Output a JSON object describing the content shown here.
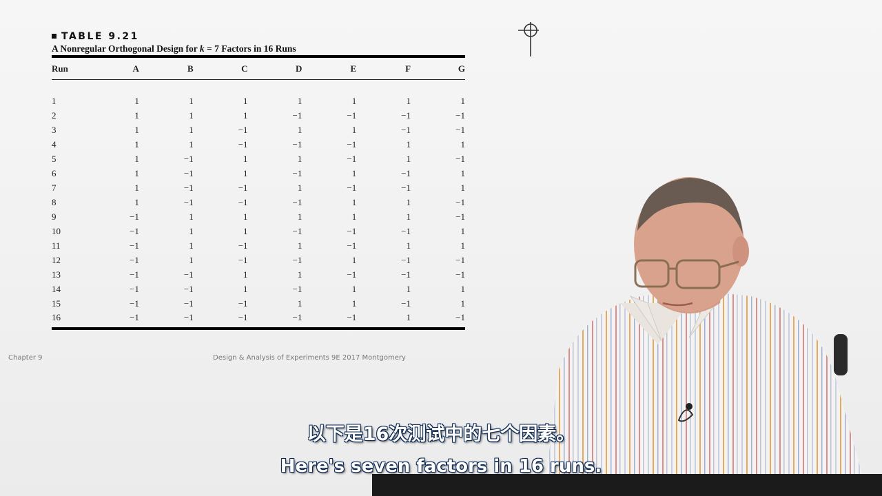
{
  "table": {
    "label": "TABLE 9.21",
    "caption_pre": "A Nonregular Orthogonal Design for ",
    "caption_k": "k",
    "caption_post": " = 7 Factors in 16 Runs",
    "headers": [
      "Run",
      "A",
      "B",
      "C",
      "D",
      "E",
      "F",
      "G"
    ],
    "rows": [
      [
        "1",
        "1",
        "1",
        "1",
        "1",
        "1",
        "1",
        "1"
      ],
      [
        "2",
        "1",
        "1",
        "1",
        "−1",
        "−1",
        "−1",
        "−1"
      ],
      [
        "3",
        "1",
        "1",
        "−1",
        "1",
        "1",
        "−1",
        "−1"
      ],
      [
        "4",
        "1",
        "1",
        "−1",
        "−1",
        "−1",
        "1",
        "1"
      ],
      [
        "5",
        "1",
        "−1",
        "1",
        "1",
        "−1",
        "1",
        "−1"
      ],
      [
        "6",
        "1",
        "−1",
        "1",
        "−1",
        "1",
        "−1",
        "1"
      ],
      [
        "7",
        "1",
        "−1",
        "−1",
        "1",
        "−1",
        "−1",
        "1"
      ],
      [
        "8",
        "1",
        "−1",
        "−1",
        "−1",
        "1",
        "1",
        "−1"
      ],
      [
        "9",
        "−1",
        "1",
        "1",
        "1",
        "1",
        "1",
        "−1"
      ],
      [
        "10",
        "−1",
        "1",
        "1",
        "−1",
        "−1",
        "−1",
        "1"
      ],
      [
        "11",
        "−1",
        "1",
        "−1",
        "1",
        "−1",
        "1",
        "1"
      ],
      [
        "12",
        "−1",
        "1",
        "−1",
        "−1",
        "1",
        "−1",
        "−1"
      ],
      [
        "13",
        "−1",
        "−1",
        "1",
        "1",
        "−1",
        "−1",
        "−1"
      ],
      [
        "14",
        "−1",
        "−1",
        "1",
        "−1",
        "1",
        "1",
        "1"
      ],
      [
        "15",
        "−1",
        "−1",
        "−1",
        "1",
        "1",
        "−1",
        "1"
      ],
      [
        "16",
        "−1",
        "−1",
        "−1",
        "−1",
        "−1",
        "1",
        "−1"
      ]
    ]
  },
  "footer": {
    "left": "Chapter 9",
    "center": "Design & Analysis of Experiments 9E 2017 Montgomery"
  },
  "subtitles": {
    "chinese": "以下是16次测试中的七个因素。",
    "english": "Here's seven factors in 16 runs."
  },
  "icons": {
    "crosshair": "crosshair-icon"
  }
}
